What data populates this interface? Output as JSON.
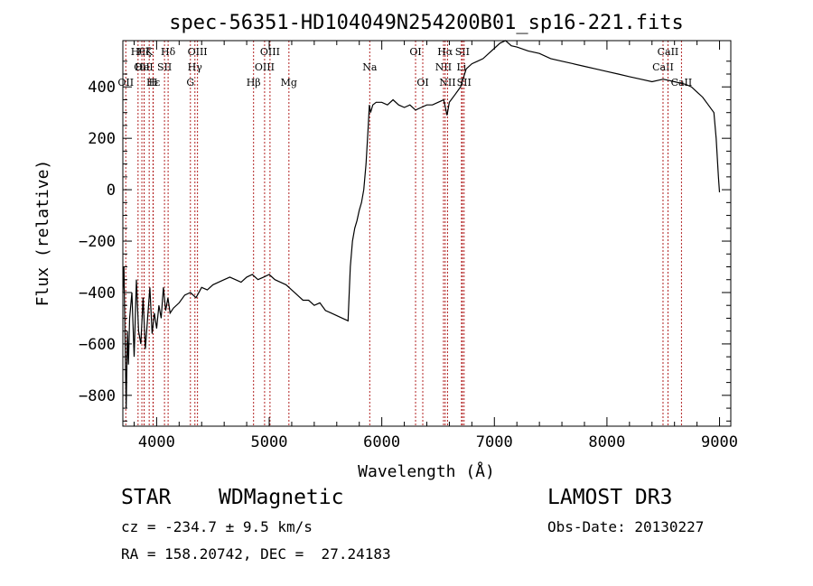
{
  "chart_data": {
    "type": "line",
    "title": "spec-56351-HD104049N254200B01_sp16-221.fits",
    "xlabel": "Wavelength (Å)",
    "ylabel": "Flux (relative)",
    "xlim": [
      3700,
      9100
    ],
    "ylim": [
      -920,
      580
    ],
    "x_ticks": [
      4000,
      5000,
      6000,
      7000,
      8000,
      9000
    ],
    "y_ticks": [
      -800,
      -600,
      -400,
      -200,
      0,
      200,
      400
    ],
    "grid": false,
    "line_color": "#000000",
    "marker_color": "#b22222",
    "series": [
      {
        "x": [
          3700,
          3710,
          3720,
          3730,
          3740,
          3750,
          3760,
          3780,
          3800,
          3820,
          3840,
          3860,
          3880,
          3900,
          3920,
          3940,
          3960,
          3980,
          4000,
          4020,
          4040,
          4060,
          4080,
          4100,
          4120,
          4150,
          4200,
          4250,
          4300,
          4350,
          4400,
          4450,
          4500,
          4550,
          4600,
          4650,
          4700,
          4750,
          4800,
          4850,
          4900,
          4950,
          5000,
          5050,
          5100,
          5150,
          5200,
          5250,
          5300,
          5350,
          5400,
          5450,
          5500,
          5550,
          5600,
          5650,
          5700,
          5720,
          5740,
          5760,
          5780,
          5800,
          5820,
          5840,
          5860,
          5880,
          5890,
          5900,
          5920,
          5950,
          6000,
          6050,
          6100,
          6150,
          6200,
          6250,
          6300,
          6350,
          6400,
          6450,
          6500,
          6550,
          6580,
          6600,
          6650,
          6700,
          6750,
          6800,
          6850,
          6900,
          6950,
          7000,
          7050,
          7100,
          7150,
          7200,
          7300,
          7400,
          7500,
          7600,
          7700,
          7800,
          7900,
          8000,
          8100,
          8200,
          8300,
          8400,
          8500,
          8600,
          8700,
          8750,
          8800,
          8850,
          8900,
          8950,
          8970,
          8990,
          9000
        ],
        "y": [
          -400,
          -300,
          -600,
          -850,
          -550,
          -680,
          -500,
          -400,
          -650,
          -350,
          -550,
          -600,
          -420,
          -620,
          -500,
          -380,
          -560,
          -480,
          -540,
          -450,
          -500,
          -380,
          -470,
          -420,
          -480,
          -460,
          -440,
          -410,
          -400,
          -420,
          -380,
          -390,
          -370,
          -360,
          -350,
          -340,
          -350,
          -360,
          -340,
          -330,
          -350,
          -340,
          -330,
          -350,
          -360,
          -370,
          -390,
          -410,
          -430,
          -430,
          -450,
          -440,
          -470,
          -480,
          -490,
          -500,
          -510,
          -300,
          -200,
          -150,
          -120,
          -80,
          -50,
          0,
          100,
          250,
          330,
          300,
          330,
          340,
          340,
          330,
          350,
          330,
          320,
          330,
          310,
          320,
          330,
          330,
          340,
          350,
          290,
          340,
          370,
          400,
          470,
          490,
          500,
          510,
          530,
          550,
          570,
          580,
          560,
          555,
          540,
          530,
          510,
          500,
          490,
          480,
          470,
          460,
          450,
          440,
          430,
          420,
          430,
          420,
          410,
          400,
          380,
          360,
          330,
          300,
          200,
          50,
          -10
        ]
      }
    ],
    "lines": [
      {
        "x": 3835,
        "label": "Hθ",
        "row": 1
      },
      {
        "x": 3869,
        "label": "OII",
        "row": 2
      },
      {
        "x": 3726,
        "label": "OII",
        "row": 3
      },
      {
        "x": 3889,
        "label": "Hζ",
        "row": 1
      },
      {
        "x": 3934,
        "label": "K",
        "row": 1
      },
      {
        "x": 3889,
        "label": "HeI",
        "row": 2
      },
      {
        "x": 3968,
        "label": "H",
        "row": 3
      },
      {
        "x": 3970,
        "label": "Hε",
        "row": 3
      },
      {
        "x": 4070,
        "label": "SII",
        "row": 2
      },
      {
        "x": 4102,
        "label": "Hδ",
        "row": 1
      },
      {
        "x": 4300,
        "label": "G",
        "row": 3
      },
      {
        "x": 4340,
        "label": "Hγ",
        "row": 2
      },
      {
        "x": 4363,
        "label": "OIII",
        "row": 1
      },
      {
        "x": 4861,
        "label": "Hβ",
        "row": 3
      },
      {
        "x": 4959,
        "label": "OIII",
        "row": 2
      },
      {
        "x": 5007,
        "label": "OIII",
        "row": 1
      },
      {
        "x": 5175,
        "label": "Mg",
        "row": 3
      },
      {
        "x": 5893,
        "label": "Na",
        "row": 2
      },
      {
        "x": 6300,
        "label": "OI",
        "row": 1
      },
      {
        "x": 6364,
        "label": "OI",
        "row": 3
      },
      {
        "x": 6548,
        "label": "NII",
        "row": 2
      },
      {
        "x": 6563,
        "label": "Hα",
        "row": 1
      },
      {
        "x": 6584,
        "label": "NII",
        "row": 3
      },
      {
        "x": 6708,
        "label": "Li",
        "row": 2
      },
      {
        "x": 6716,
        "label": "SII",
        "row": 1
      },
      {
        "x": 6731,
        "label": "SII",
        "row": 3
      },
      {
        "x": 8498,
        "label": "CaII",
        "row": 2
      },
      {
        "x": 8542,
        "label": "CaII",
        "row": 1
      },
      {
        "x": 8662,
        "label": "CaII",
        "row": 3
      }
    ]
  },
  "info": {
    "object_class": "STAR",
    "subclass": "WDMagnetic",
    "survey": "LAMOST DR3",
    "redshift": "cz = -234.7 ± 9.5 km/s",
    "obs_date": "Obs-Date: 20130227",
    "coords": "RA = 158.20742, DEC =  27.24183"
  }
}
